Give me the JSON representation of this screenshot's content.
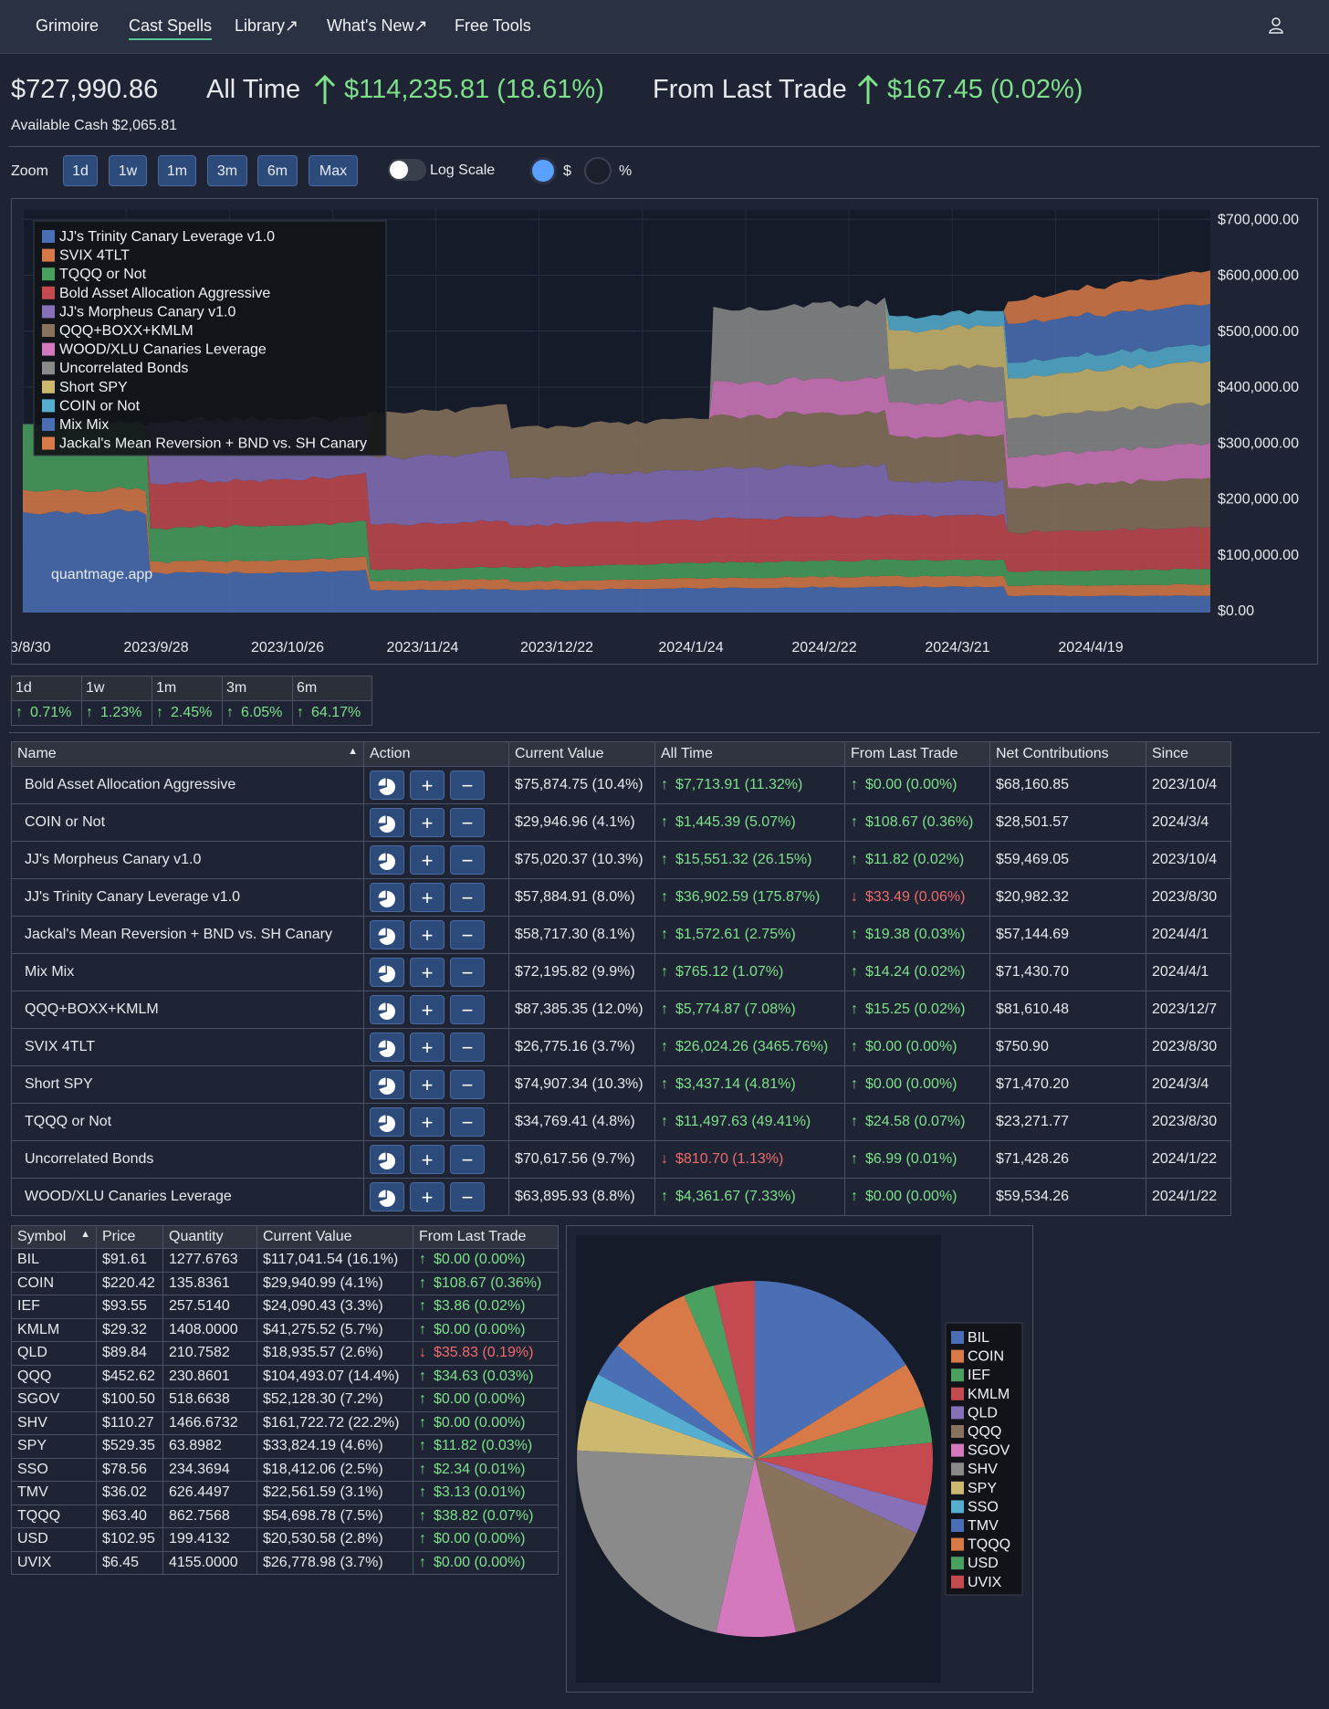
{
  "nav": {
    "items": [
      "Grimoire",
      "Cast Spells",
      "Library↗",
      "What's New↗",
      "Free Tools"
    ],
    "active": "Cast Spells"
  },
  "summary": {
    "total": "$727,990.86",
    "all_time_label": "All Time",
    "all_time_value": "$114,235.81 (18.61%)",
    "last_trade_label": "From Last Trade",
    "last_trade_value": "$167.45 (0.02%)",
    "available_cash": "Available Cash $2,065.81"
  },
  "controls": {
    "zoom_label": "Zoom",
    "zoom_buttons": [
      "1d",
      "1w",
      "1m",
      "3m",
      "6m",
      "Max"
    ],
    "log_scale_label": "Log Scale",
    "dollar_label": "$",
    "percent_label": "%"
  },
  "chart_data": {
    "type": "area",
    "watermark": "quantmage.app",
    "legend": [
      {
        "name": "JJ's Trinity Canary Leverage v1.0",
        "color": "#4b6fb5"
      },
      {
        "name": "SVIX 4TLT",
        "color": "#d87a48"
      },
      {
        "name": "TQQQ or Not",
        "color": "#4aa05e"
      },
      {
        "name": "Bold Asset Allocation Aggressive",
        "color": "#c44a4f"
      },
      {
        "name": "JJ's Morpheus Canary v1.0",
        "color": "#8670b8"
      },
      {
        "name": "QQQ+BOXX+KMLM",
        "color": "#8a735c"
      },
      {
        "name": "WOOD/XLU Canaries Leverage",
        "color": "#d479bd"
      },
      {
        "name": "Uncorrelated Bonds",
        "color": "#8a8a8a"
      },
      {
        "name": "Short SPY",
        "color": "#cdb870"
      },
      {
        "name": "COIN or Not",
        "color": "#56aed0"
      },
      {
        "name": "Mix Mix",
        "color": "#4b6fb5"
      },
      {
        "name": "Jackal's Mean Reversion + BND vs. SH Canary",
        "color": "#d87a48"
      }
    ],
    "y_ticks": [
      "$700,000.00",
      "$600,000.00",
      "$500,000.00",
      "$400,000.00",
      "$300,000.00",
      "$200,000.00",
      "$100,000.00",
      "$0.00"
    ],
    "x_ticks": [
      "3/8/30",
      "2023/9/28",
      "2023/10/26",
      "2023/11/24",
      "2023/12/22",
      "2024/1/24",
      "2024/2/22",
      "2024/3/21",
      "2024/4/19"
    ],
    "ylim": [
      0,
      720000
    ],
    "stacked_samples": [
      {
        "x": 0.0,
        "v": [
          180000,
          40000,
          120000,
          0,
          0,
          0,
          0,
          0,
          0,
          0,
          0,
          0
        ]
      },
      {
        "x": 0.28,
        "v": [
          180000,
          40000,
          120000,
          0,
          0,
          0,
          0,
          0,
          0,
          0,
          0,
          0
        ]
      },
      {
        "x": 0.29,
        "v": [
          70000,
          20000,
          60000,
          80000,
          110000,
          0,
          0,
          0,
          0,
          0,
          0,
          0
        ]
      },
      {
        "x": 0.56,
        "v": [
          72000,
          22000,
          62000,
          82000,
          112000,
          0,
          0,
          0,
          0,
          0,
          0,
          0
        ]
      },
      {
        "x": 0.78,
        "v": [
          75000,
          24000,
          64000,
          84000,
          100000,
          0,
          0,
          0,
          0,
          0,
          0,
          0
        ]
      },
      {
        "x": 0.79,
        "v": [
          40000,
          16000,
          20000,
          80000,
          120000,
          80000,
          0,
          0,
          0,
          0,
          0,
          0
        ]
      },
      {
        "x": 1.1,
        "v": [
          42000,
          18000,
          22000,
          82000,
          124000,
          82000,
          0,
          0,
          0,
          0,
          0,
          0
        ]
      },
      {
        "x": 1.11,
        "v": [
          40000,
          15000,
          25000,
          75000,
          85000,
          90000,
          0,
          0,
          0,
          0,
          0,
          0
        ]
      },
      {
        "x": 1.56,
        "v": [
          44000,
          18000,
          28000,
          78000,
          90000,
          92000,
          0,
          0,
          0,
          0,
          0,
          0
        ]
      },
      {
        "x": 1.57,
        "v": [
          44000,
          18000,
          28000,
          78000,
          90000,
          92000,
          60000,
          130000,
          0,
          0,
          0,
          0
        ]
      },
      {
        "x": 1.96,
        "v": [
          46000,
          19000,
          29000,
          79000,
          92000,
          95000,
          62000,
          135000,
          0,
          0,
          0,
          0
        ]
      },
      {
        "x": 1.97,
        "v": [
          46000,
          19000,
          29000,
          79000,
          60000,
          80000,
          60000,
          60000,
          70000,
          25000,
          0,
          0
        ]
      },
      {
        "x": 2.23,
        "v": [
          46000,
          19000,
          29000,
          79000,
          62000,
          82000,
          62000,
          62000,
          72000,
          27000,
          0,
          0
        ]
      },
      {
        "x": 2.24,
        "v": [
          30000,
          18000,
          25000,
          70000,
          0,
          80000,
          55000,
          70000,
          72000,
          28000,
          70000,
          40000
        ]
      },
      {
        "x": 2.7,
        "v": [
          30000,
          20000,
          28000,
          75000,
          0,
          88000,
          62000,
          72000,
          75000,
          30000,
          72000,
          60000
        ]
      }
    ]
  },
  "perf": {
    "headers": [
      "1d",
      "1w",
      "1m",
      "3m",
      "6m"
    ],
    "values": [
      "0.71%",
      "1.23%",
      "2.45%",
      "6.05%",
      "64.17%"
    ]
  },
  "spells": {
    "headers": [
      "Name",
      "Action",
      "Current Value",
      "All Time",
      "From Last Trade",
      "Net Contributions",
      "Since"
    ],
    "rows": [
      {
        "name": "Bold Asset Allocation Aggressive",
        "value": "$75,874.75 (10.4%)",
        "all_time": "$7,713.91 (11.32%)",
        "all_up": true,
        "last": "$0.00 (0.00%)",
        "last_up": true,
        "net": "$68,160.85",
        "since": "2023/10/4"
      },
      {
        "name": "COIN or Not",
        "value": "$29,946.96 (4.1%)",
        "all_time": "$1,445.39 (5.07%)",
        "all_up": true,
        "last": "$108.67 (0.36%)",
        "last_up": true,
        "net": "$28,501.57",
        "since": "2024/3/4"
      },
      {
        "name": "JJ's Morpheus Canary v1.0",
        "value": "$75,020.37 (10.3%)",
        "all_time": "$15,551.32 (26.15%)",
        "all_up": true,
        "last": "$11.82 (0.02%)",
        "last_up": true,
        "net": "$59,469.05",
        "since": "2023/10/4"
      },
      {
        "name": "JJ's Trinity Canary Leverage v1.0",
        "value": "$57,884.91 (8.0%)",
        "all_time": "$36,902.59 (175.87%)",
        "all_up": true,
        "last": "$33.49 (0.06%)",
        "last_up": false,
        "net": "$20,982.32",
        "since": "2023/8/30"
      },
      {
        "name": "Jackal's Mean Reversion + BND vs. SH Canary",
        "value": "$58,717.30 (8.1%)",
        "all_time": "$1,572.61 (2.75%)",
        "all_up": true,
        "last": "$19.38 (0.03%)",
        "last_up": true,
        "net": "$57,144.69",
        "since": "2024/4/1"
      },
      {
        "name": "Mix Mix",
        "value": "$72,195.82 (9.9%)",
        "all_time": "$765.12 (1.07%)",
        "all_up": true,
        "last": "$14.24 (0.02%)",
        "last_up": true,
        "net": "$71,430.70",
        "since": "2024/4/1"
      },
      {
        "name": "QQQ+BOXX+KMLM",
        "value": "$87,385.35 (12.0%)",
        "all_time": "$5,774.87 (7.08%)",
        "all_up": true,
        "last": "$15.25 (0.02%)",
        "last_up": true,
        "net": "$81,610.48",
        "since": "2023/12/7"
      },
      {
        "name": "SVIX 4TLT",
        "value": "$26,775.16 (3.7%)",
        "all_time": "$26,024.26 (3465.76%)",
        "all_up": true,
        "last": "$0.00 (0.00%)",
        "last_up": true,
        "net": "$750.90",
        "since": "2023/8/30"
      },
      {
        "name": "Short SPY",
        "value": "$74,907.34 (10.3%)",
        "all_time": "$3,437.14 (4.81%)",
        "all_up": true,
        "last": "$0.00 (0.00%)",
        "last_up": true,
        "net": "$71,470.20",
        "since": "2024/3/4"
      },
      {
        "name": "TQQQ or Not",
        "value": "$34,769.41 (4.8%)",
        "all_time": "$11,497.63 (49.41%)",
        "all_up": true,
        "last": "$24.58 (0.07%)",
        "last_up": true,
        "net": "$23,271.77",
        "since": "2023/8/30"
      },
      {
        "name": "Uncorrelated Bonds",
        "value": "$70,617.56 (9.7%)",
        "all_time": "$810.70 (1.13%)",
        "all_up": false,
        "last": "$6.99 (0.01%)",
        "last_up": true,
        "net": "$71,428.26",
        "since": "2024/1/22"
      },
      {
        "name": "WOOD/XLU Canaries Leverage",
        "value": "$63,895.93 (8.8%)",
        "all_time": "$4,361.67 (7.33%)",
        "all_up": true,
        "last": "$0.00 (0.00%)",
        "last_up": true,
        "net": "$59,534.26",
        "since": "2024/1/22"
      }
    ]
  },
  "symbols": {
    "headers": [
      "Symbol",
      "Price",
      "Quantity",
      "Current Value",
      "From Last Trade"
    ],
    "rows": [
      {
        "sym": "BIL",
        "price": "$91.61",
        "qty": "1277.6763",
        "value": "$117,041.54 (16.1%)",
        "last": "$0.00 (0.00%)",
        "up": true
      },
      {
        "sym": "COIN",
        "price": "$220.42",
        "qty": "135.8361",
        "value": "$29,940.99 (4.1%)",
        "last": "$108.67 (0.36%)",
        "up": true
      },
      {
        "sym": "IEF",
        "price": "$93.55",
        "qty": "257.5140",
        "value": "$24,090.43 (3.3%)",
        "last": "$3.86 (0.02%)",
        "up": true
      },
      {
        "sym": "KMLM",
        "price": "$29.32",
        "qty": "1408.0000",
        "value": "$41,275.52 (5.7%)",
        "last": "$0.00 (0.00%)",
        "up": true
      },
      {
        "sym": "QLD",
        "price": "$89.84",
        "qty": "210.7582",
        "value": "$18,935.57 (2.6%)",
        "last": "$35.83 (0.19%)",
        "up": false
      },
      {
        "sym": "QQQ",
        "price": "$452.62",
        "qty": "230.8601",
        "value": "$104,493.07 (14.4%)",
        "last": "$34.63 (0.03%)",
        "up": true
      },
      {
        "sym": "SGOV",
        "price": "$100.50",
        "qty": "518.6638",
        "value": "$52,128.30 (7.2%)",
        "last": "$0.00 (0.00%)",
        "up": true
      },
      {
        "sym": "SHV",
        "price": "$110.27",
        "qty": "1466.6732",
        "value": "$161,722.72 (22.2%)",
        "last": "$0.00 (0.00%)",
        "up": true
      },
      {
        "sym": "SPY",
        "price": "$529.35",
        "qty": "63.8982",
        "value": "$33,824.19 (4.6%)",
        "last": "$11.82 (0.03%)",
        "up": true
      },
      {
        "sym": "SSO",
        "price": "$78.56",
        "qty": "234.3694",
        "value": "$18,412.06 (2.5%)",
        "last": "$2.34 (0.01%)",
        "up": true
      },
      {
        "sym": "TMV",
        "price": "$36.02",
        "qty": "626.4497",
        "value": "$22,561.59 (3.1%)",
        "last": "$3.13 (0.01%)",
        "up": true
      },
      {
        "sym": "TQQQ",
        "price": "$63.40",
        "qty": "862.7568",
        "value": "$54,698.78 (7.5%)",
        "last": "$38.82 (0.07%)",
        "up": true
      },
      {
        "sym": "USD",
        "price": "$102.95",
        "qty": "199.4132",
        "value": "$20,530.58 (2.8%)",
        "last": "$0.00 (0.00%)",
        "up": true
      },
      {
        "sym": "UVIX",
        "price": "$6.45",
        "qty": "4155.0000",
        "value": "$26,778.98 (3.7%)",
        "last": "$0.00 (0.00%)",
        "up": true
      }
    ]
  },
  "pie": {
    "type": "pie",
    "slices": [
      {
        "label": "BIL",
        "value": 16.1,
        "color": "#4b6fb5"
      },
      {
        "label": "COIN",
        "value": 4.1,
        "color": "#d87a48"
      },
      {
        "label": "IEF",
        "value": 3.3,
        "color": "#4aa05e"
      },
      {
        "label": "KMLM",
        "value": 5.7,
        "color": "#c44a4f"
      },
      {
        "label": "QLD",
        "value": 2.6,
        "color": "#8670b8"
      },
      {
        "label": "QQQ",
        "value": 14.4,
        "color": "#8a735c"
      },
      {
        "label": "SGOV",
        "value": 7.2,
        "color": "#d479bd"
      },
      {
        "label": "SHV",
        "value": 22.2,
        "color": "#8a8a8a"
      },
      {
        "label": "SPY",
        "value": 4.6,
        "color": "#cdb870"
      },
      {
        "label": "SSO",
        "value": 2.5,
        "color": "#56aed0"
      },
      {
        "label": "TMV",
        "value": 3.1,
        "color": "#4b6fb5"
      },
      {
        "label": "TQQQ",
        "value": 7.5,
        "color": "#d87a48"
      },
      {
        "label": "USD",
        "value": 2.8,
        "color": "#4aa05e"
      },
      {
        "label": "UVIX",
        "value": 3.7,
        "color": "#c44a4f"
      }
    ]
  }
}
